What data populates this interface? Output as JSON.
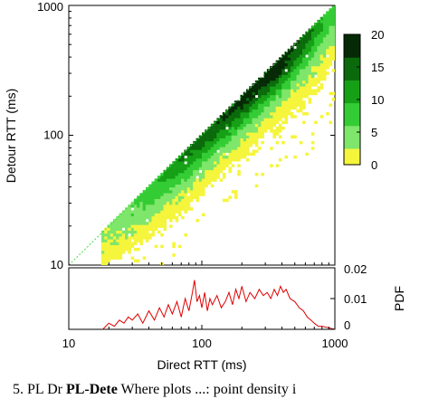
{
  "chart_data": [
    {
      "type": "heatmap",
      "title": "",
      "xlabel": "",
      "ylabel": "Detour RTT (ms)",
      "xscale": "log",
      "yscale": "log",
      "xlim": [
        10,
        1000
      ],
      "ylim": [
        10,
        1000
      ],
      "yticks": [
        "10",
        "100",
        "1000"
      ],
      "reference_line": "y = x",
      "reference_line_color": "#44dd44",
      "colorbar": {
        "ticks": [
          "0",
          "5",
          "10",
          "15",
          "20"
        ],
        "range": [
          0,
          20
        ],
        "colors": [
          "#f5f53c",
          "#7ee66a",
          "#34cc34",
          "#16a016",
          "#0b6a0b",
          "#052a05"
        ]
      },
      "density_ridges": [
        {
          "x": 20,
          "y_low": 10,
          "y_high": 20,
          "peak": 3
        },
        {
          "x": 30,
          "y_low": 13,
          "y_high": 30,
          "peak": 6
        },
        {
          "x": 50,
          "y_low": 18,
          "y_high": 50,
          "peak": 10
        },
        {
          "x": 80,
          "y_low": 25,
          "y_high": 80,
          "peak": 14
        },
        {
          "x": 120,
          "y_low": 40,
          "y_high": 120,
          "peak": 16
        },
        {
          "x": 200,
          "y_low": 60,
          "y_high": 200,
          "peak": 18
        },
        {
          "x": 350,
          "y_low": 90,
          "y_high": 350,
          "peak": 20
        },
        {
          "x": 600,
          "y_low": 120,
          "y_high": 600,
          "peak": 15
        },
        {
          "x": 900,
          "y_low": 200,
          "y_high": 950,
          "peak": 8
        }
      ]
    },
    {
      "type": "line",
      "title": "",
      "xlabel": "Direct RTT (ms)",
      "ylabel": "PDF",
      "xscale": "log",
      "xlim": [
        10,
        1000
      ],
      "ylim": [
        0,
        0.02
      ],
      "xticks": [
        "10",
        "100",
        "1000"
      ],
      "yticks": [
        "0",
        "0.01",
        "0.02"
      ],
      "color": "#e00000",
      "series": [
        {
          "x": [
            18,
            20,
            22,
            24,
            26,
            28,
            30,
            33,
            36,
            40,
            44,
            48,
            52,
            56,
            60,
            65,
            70,
            75,
            80,
            85,
            88,
            92,
            96,
            100,
            105,
            110,
            115,
            120,
            130,
            140,
            150,
            160,
            170,
            180,
            190,
            200,
            215,
            230,
            250,
            270,
            290,
            310,
            330,
            350,
            370,
            390,
            410,
            430,
            460,
            500,
            540,
            580,
            620,
            660,
            700,
            750,
            800,
            900,
            1000
          ],
          "y": [
            0,
            0.002,
            0.001,
            0.003,
            0.002,
            0.004,
            0.003,
            0.005,
            0.002,
            0.006,
            0.003,
            0.007,
            0.004,
            0.008,
            0.005,
            0.009,
            0.004,
            0.01,
            0.006,
            0.012,
            0.016,
            0.009,
            0.011,
            0.007,
            0.012,
            0.006,
            0.01,
            0.008,
            0.011,
            0.007,
            0.009,
            0.012,
            0.008,
            0.013,
            0.01,
            0.014,
            0.009,
            0.012,
            0.01,
            0.013,
            0.011,
            0.012,
            0.01,
            0.013,
            0.011,
            0.014,
            0.012,
            0.013,
            0.01,
            0.009,
            0.007,
            0.006,
            0.004,
            0.003,
            0.002,
            0.001,
            0.001,
            0.0005,
            0
          ]
        }
      ]
    }
  ],
  "caption": {
    "lead": "5. PL Dr",
    "bold": "PL-Dete",
    "rest": "  Where plots ...: point density i"
  }
}
